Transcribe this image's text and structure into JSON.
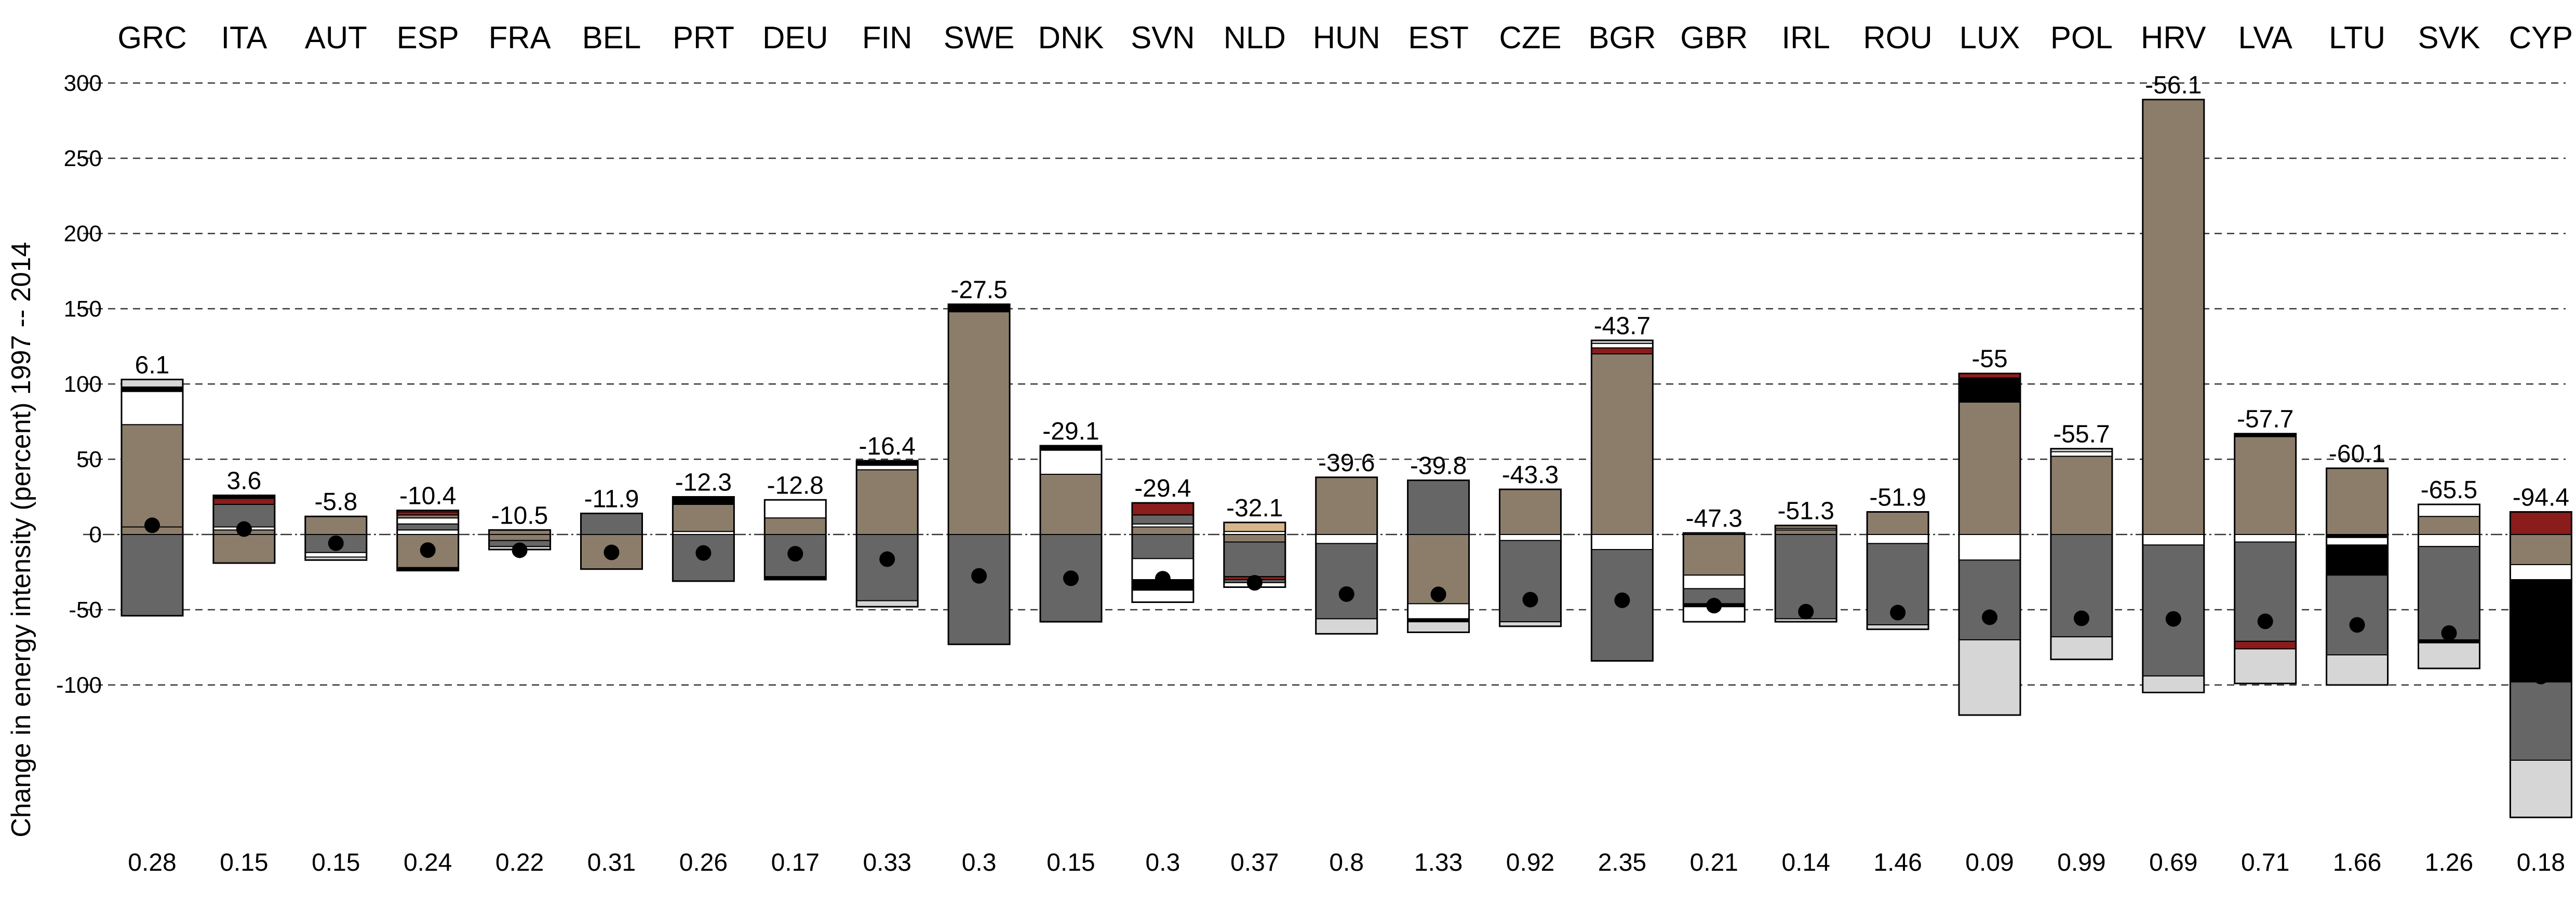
{
  "chart_data": {
    "type": "bar",
    "ylabel": "Change in energy intensity (percent) 1997 -- 2014",
    "ylim": [
      -200,
      300
    ],
    "yticks": [
      -100,
      -50,
      0,
      50,
      100,
      150,
      200,
      250,
      300
    ],
    "grid": "horizontal dashed",
    "colors": {
      "light_grey": "#d6d6d6",
      "white": "#ffffff",
      "black": "#000000",
      "taupe": "#8c7d6b",
      "dark_grey": "#666666",
      "dark_red": "#8b1c1c",
      "tan": "#d6b68c"
    },
    "categories": [
      "GRC",
      "ITA",
      "AUT",
      "ESP",
      "FRA",
      "BEL",
      "PRT",
      "DEU",
      "FIN",
      "SWE",
      "DNK",
      "SVN",
      "NLD",
      "HUN",
      "EST",
      "CZE",
      "BGR",
      "GBR",
      "IRL",
      "ROU",
      "LUX",
      "POL",
      "HRV",
      "LVA",
      "LTU",
      "SVK",
      "CYP"
    ],
    "total_labels": [
      "6.1",
      "3.6",
      "-5.8",
      "-10.4",
      "-10.5",
      "-11.9",
      "-12.3",
      "-12.8",
      "-16.4",
      "-27.5",
      "-29.1",
      "-29.4",
      "-32.1",
      "-39.6",
      "-39.8",
      "-43.3",
      "-43.7",
      "-47.3",
      "-51.3",
      "-51.9",
      "-55",
      "-55.7",
      "-56.1",
      "-57.7",
      "-60.1",
      "-65.5",
      "-94.4"
    ],
    "totals": [
      6.1,
      3.6,
      -5.8,
      -10.4,
      -10.5,
      -11.9,
      -12.3,
      -12.8,
      -16.4,
      -27.5,
      -29.1,
      -29.4,
      -32.1,
      -39.6,
      -39.8,
      -43.3,
      -43.7,
      -47.3,
      -51.3,
      -51.9,
      -55,
      -55.7,
      -56.1,
      -57.7,
      -60.1,
      -65.5,
      -94.4
    ],
    "bottom_labels": [
      "0.28",
      "0.15",
      "0.15",
      "0.24",
      "0.22",
      "0.31",
      "0.26",
      "0.17",
      "0.33",
      "0.3",
      "0.15",
      "0.3",
      "0.37",
      "0.8",
      "1.33",
      "0.92",
      "2.35",
      "0.21",
      "0.14",
      "1.46",
      "0.09",
      "0.99",
      "0.69",
      "0.71",
      "1.66",
      "1.26",
      "0.18"
    ],
    "bars": [
      {
        "pos": [
          [
            "taupe",
            5
          ],
          [
            "taupe",
            68
          ],
          [
            "white",
            22
          ],
          [
            "black",
            3
          ],
          [
            "light_grey",
            5
          ]
        ],
        "neg": [
          [
            "dark_grey",
            54
          ]
        ]
      },
      {
        "pos": [
          [
            "taupe",
            3
          ],
          [
            "white",
            2
          ],
          [
            "dark_grey",
            15
          ],
          [
            "dark_red",
            4
          ],
          [
            "black",
            2
          ]
        ],
        "neg": [
          [
            "taupe",
            19
          ]
        ]
      },
      {
        "pos": [
          [
            "taupe",
            12
          ]
        ],
        "neg": [
          [
            "dark_grey",
            12
          ],
          [
            "white",
            3
          ],
          [
            "light_grey",
            2
          ]
        ]
      },
      {
        "pos": [
          [
            "white",
            3
          ],
          [
            "dark_grey",
            4
          ],
          [
            "white",
            4
          ],
          [
            "taupe",
            2
          ],
          [
            "dark_red",
            2
          ],
          [
            "taupe",
            1
          ]
        ],
        "neg": [
          [
            "taupe",
            22
          ],
          [
            "black",
            2
          ]
        ]
      },
      {
        "pos": [
          [
            "taupe",
            3
          ]
        ],
        "neg": [
          [
            "taupe",
            4
          ],
          [
            "dark_grey",
            4
          ],
          [
            "light_grey",
            2
          ]
        ]
      },
      {
        "pos": [
          [
            "dark_grey",
            14
          ]
        ],
        "neg": [
          [
            "taupe",
            23
          ]
        ]
      },
      {
        "pos": [
          [
            "white",
            2
          ],
          [
            "taupe",
            18
          ],
          [
            "black",
            5
          ]
        ],
        "neg": [
          [
            "dark_grey",
            31
          ]
        ]
      },
      {
        "pos": [
          [
            "taupe",
            11
          ],
          [
            "white",
            12
          ]
        ],
        "neg": [
          [
            "dark_grey",
            28
          ],
          [
            "black",
            2
          ]
        ]
      },
      {
        "pos": [
          [
            "taupe",
            43
          ],
          [
            "white",
            3
          ],
          [
            "black",
            3
          ]
        ],
        "neg": [
          [
            "dark_grey",
            44
          ],
          [
            "light_grey",
            4
          ]
        ]
      },
      {
        "pos": [
          [
            "taupe",
            148
          ],
          [
            "black",
            5
          ]
        ],
        "neg": [
          [
            "dark_grey",
            73
          ]
        ]
      },
      {
        "pos": [
          [
            "taupe",
            40
          ],
          [
            "white",
            16
          ],
          [
            "black",
            3
          ]
        ],
        "neg": [
          [
            "dark_grey",
            58
          ]
        ]
      },
      {
        "pos": [
          [
            "taupe",
            5
          ],
          [
            "white",
            2
          ],
          [
            "dark_grey",
            6
          ],
          [
            "dark_red",
            8
          ]
        ],
        "neg": [
          [
            "dark_grey",
            16
          ],
          [
            "white",
            14
          ],
          [
            "black",
            7
          ],
          [
            "white",
            8
          ]
        ]
      },
      {
        "pos": [
          [
            "white",
            2
          ],
          [
            "tan",
            6
          ]
        ],
        "neg": [
          [
            "taupe",
            5
          ],
          [
            "dark_grey",
            23
          ],
          [
            "dark_red",
            2
          ],
          [
            "dark_grey",
            2
          ],
          [
            "white",
            3
          ]
        ]
      },
      {
        "pos": [
          [
            "taupe",
            38
          ]
        ],
        "neg": [
          [
            "white",
            6
          ],
          [
            "dark_grey",
            50
          ],
          [
            "light_grey",
            10
          ]
        ]
      },
      {
        "pos": [
          [
            "dark_grey",
            36
          ]
        ],
        "neg": [
          [
            "taupe",
            46
          ],
          [
            "white",
            10
          ],
          [
            "black",
            2
          ],
          [
            "light_grey",
            7
          ]
        ]
      },
      {
        "pos": [
          [
            "taupe",
            30
          ]
        ],
        "neg": [
          [
            "white",
            4
          ],
          [
            "dark_grey",
            54
          ],
          [
            "light_grey",
            3
          ]
        ]
      },
      {
        "pos": [
          [
            "taupe",
            120
          ],
          [
            "dark_red",
            4
          ],
          [
            "white",
            3
          ],
          [
            "light_grey",
            2
          ]
        ],
        "neg": [
          [
            "white",
            10
          ],
          [
            "dark_grey",
            74
          ]
        ]
      },
      {
        "pos": [
          [
            "dark_grey",
            1
          ]
        ],
        "neg": [
          [
            "taupe",
            27
          ],
          [
            "white",
            9
          ],
          [
            "dark_grey",
            10
          ],
          [
            "black",
            2
          ],
          [
            "white",
            10
          ]
        ]
      },
      {
        "pos": [
          [
            "taupe",
            3
          ],
          [
            "white",
            1
          ],
          [
            "taupe",
            2
          ]
        ],
        "neg": [
          [
            "dark_grey",
            56
          ],
          [
            "light_grey",
            2
          ]
        ]
      },
      {
        "pos": [
          [
            "taupe",
            15
          ]
        ],
        "neg": [
          [
            "white",
            6
          ],
          [
            "dark_grey",
            54
          ],
          [
            "light_grey",
            3
          ]
        ]
      },
      {
        "pos": [
          [
            "taupe",
            88
          ],
          [
            "black",
            16
          ],
          [
            "dark_red",
            3
          ]
        ],
        "neg": [
          [
            "white",
            17
          ],
          [
            "dark_grey",
            53
          ],
          [
            "light_grey",
            50
          ]
        ]
      },
      {
        "pos": [
          [
            "taupe",
            52
          ],
          [
            "white",
            3
          ],
          [
            "light_grey",
            2
          ]
        ],
        "neg": [
          [
            "dark_grey",
            68
          ],
          [
            "light_grey",
            15
          ]
        ]
      },
      {
        "pos": [
          [
            "taupe",
            289
          ]
        ],
        "neg": [
          [
            "white",
            7
          ],
          [
            "dark_grey",
            87
          ],
          [
            "light_grey",
            11
          ]
        ]
      },
      {
        "pos": [
          [
            "taupe",
            65
          ],
          [
            "black",
            2
          ]
        ],
        "neg": [
          [
            "white",
            5
          ],
          [
            "dark_grey",
            66
          ],
          [
            "dark_red",
            5
          ],
          [
            "light_grey",
            23
          ]
        ]
      },
      {
        "pos": [
          [
            "taupe",
            44
          ]
        ],
        "neg": [
          [
            "black",
            2
          ],
          [
            "white",
            5
          ],
          [
            "black",
            20
          ],
          [
            "dark_grey",
            53
          ],
          [
            "light_grey",
            20
          ]
        ]
      },
      {
        "pos": [
          [
            "taupe",
            12
          ],
          [
            "white",
            8
          ]
        ],
        "neg": [
          [
            "white",
            8
          ],
          [
            "dark_grey",
            62
          ],
          [
            "black",
            2
          ],
          [
            "light_grey",
            17
          ]
        ]
      },
      {
        "pos": [
          [
            "taupe",
            0
          ],
          [
            "dark_red",
            15
          ]
        ],
        "neg": [
          [
            "taupe",
            20
          ],
          [
            "white",
            10
          ],
          [
            "black",
            68
          ],
          [
            "dark_grey",
            52
          ],
          [
            "light_grey",
            38
          ]
        ]
      }
    ]
  }
}
